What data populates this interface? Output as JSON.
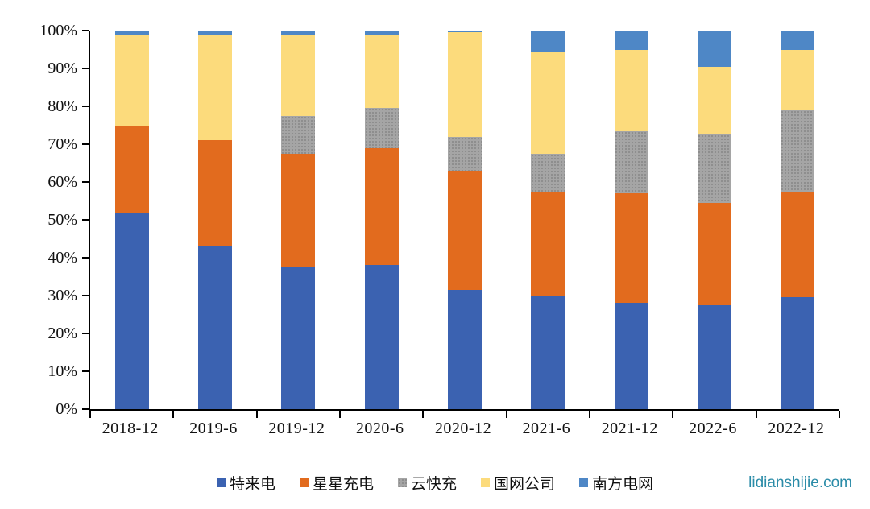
{
  "chart_data": {
    "type": "bar",
    "stacked": true,
    "percent_stacked": true,
    "title": "",
    "xlabel": "",
    "ylabel": "",
    "grid": false,
    "legend_position": "bottom",
    "categories": [
      "2018-12",
      "2019-6",
      "2019-12",
      "2020-6",
      "2020-12",
      "2021-6",
      "2021-12",
      "2022-6",
      "2022-12"
    ],
    "series": [
      {
        "key": "telaidian",
        "name": "特来电",
        "color": "#3B62B1",
        "pattern": "solid",
        "values": [
          52,
          43,
          37.5,
          38,
          31.5,
          30,
          28,
          27.5,
          29.5
        ]
      },
      {
        "key": "xingxing-chongdian",
        "name": "星星充电",
        "color": "#E26B1E",
        "pattern": "solid",
        "values": [
          23,
          28,
          30,
          31,
          31.5,
          27.5,
          29,
          27,
          28
        ]
      },
      {
        "key": "yunkuaichong",
        "name": "云快充",
        "color": "#A5A5A5",
        "pattern": "dotted",
        "values": [
          0,
          0,
          10,
          10.5,
          9,
          10,
          16.5,
          18,
          21.5
        ]
      },
      {
        "key": "guowang-gongsi",
        "name": "国网公司",
        "color": "#FCDB7C",
        "pattern": "solid",
        "values": [
          24,
          28,
          21.5,
          19.5,
          27.5,
          27,
          21.5,
          18,
          16
        ]
      },
      {
        "key": "nanfang-dianwang",
        "name": "南方电网",
        "color": "#4E87C6",
        "pattern": "solid",
        "values": [
          1,
          1,
          1,
          1,
          0.5,
          5.5,
          5,
          9.5,
          5
        ]
      }
    ],
    "y_axis": {
      "min": 0,
      "max": 100,
      "step": 10,
      "unit": "%",
      "tick_labels": [
        "0%",
        "10%",
        "20%",
        "30%",
        "40%",
        "50%",
        "60%",
        "70%",
        "80%",
        "90%",
        "100%"
      ]
    }
  },
  "watermark": {
    "text": "lidianshijie.com",
    "color": "#2B8CA8"
  }
}
